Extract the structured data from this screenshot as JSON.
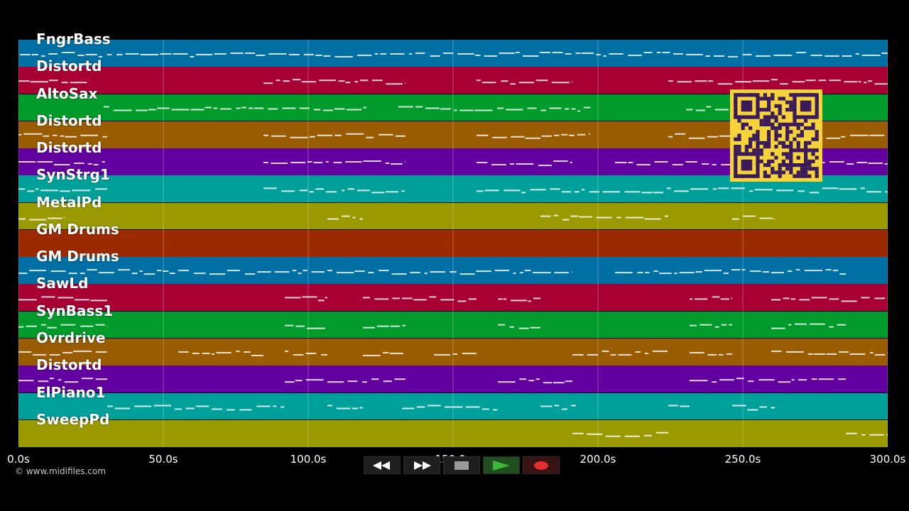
{
  "tracks": [
    {
      "name": "FngrBass",
      "color": "#006fa3"
    },
    {
      "name": "Distortd",
      "color": "#a80034"
    },
    {
      "name": "AltoSax",
      "color": "#009b2a"
    },
    {
      "name": "Distortd",
      "color": "#9a5c00"
    },
    {
      "name": "Distortd",
      "color": "#6200a0"
    },
    {
      "name": "SynStrg1",
      "color": "#00a09a"
    },
    {
      "name": "MetalPd",
      "color": "#9a9a00"
    },
    {
      "name": "GM Drums",
      "color": "#9c2a00"
    },
    {
      "name": "GM Drums",
      "color": "#006fa3"
    },
    {
      "name": "SawLd",
      "color": "#a80034"
    },
    {
      "name": "SynBass1",
      "color": "#009b2a"
    },
    {
      "name": "Ovrdrive",
      "color": "#9a5c00"
    },
    {
      "name": "Distortd",
      "color": "#6200a0"
    },
    {
      "name": "ElPiano1",
      "color": "#00a09a"
    },
    {
      "name": "SweepPd",
      "color": "#9a9a00"
    }
  ],
  "timeline": {
    "ticks": [
      "0.0s",
      "50.0s",
      "100.0s",
      "150.0s",
      "200.0s",
      "250.0s",
      "300.0s"
    ],
    "tick_seconds": [
      0,
      50,
      100,
      150,
      200,
      250,
      300
    ],
    "duration_seconds": 300
  },
  "copyright": "© www.midifiles.com",
  "transport": {
    "buttons": [
      {
        "name": "rewind-button",
        "icon": "rewind-icon"
      },
      {
        "name": "fast-forward-button",
        "icon": "fast-forward-icon"
      },
      {
        "name": "stop-button",
        "icon": "stop-icon"
      },
      {
        "name": "play-button",
        "icon": "play-icon",
        "color": "#3cb83c"
      },
      {
        "name": "record-button",
        "icon": "record-icon",
        "color": "#e03030"
      }
    ]
  },
  "overlay": {
    "icon": "qr-code-icon",
    "color": "#f5d33a",
    "dark": "#3a1a5a"
  }
}
